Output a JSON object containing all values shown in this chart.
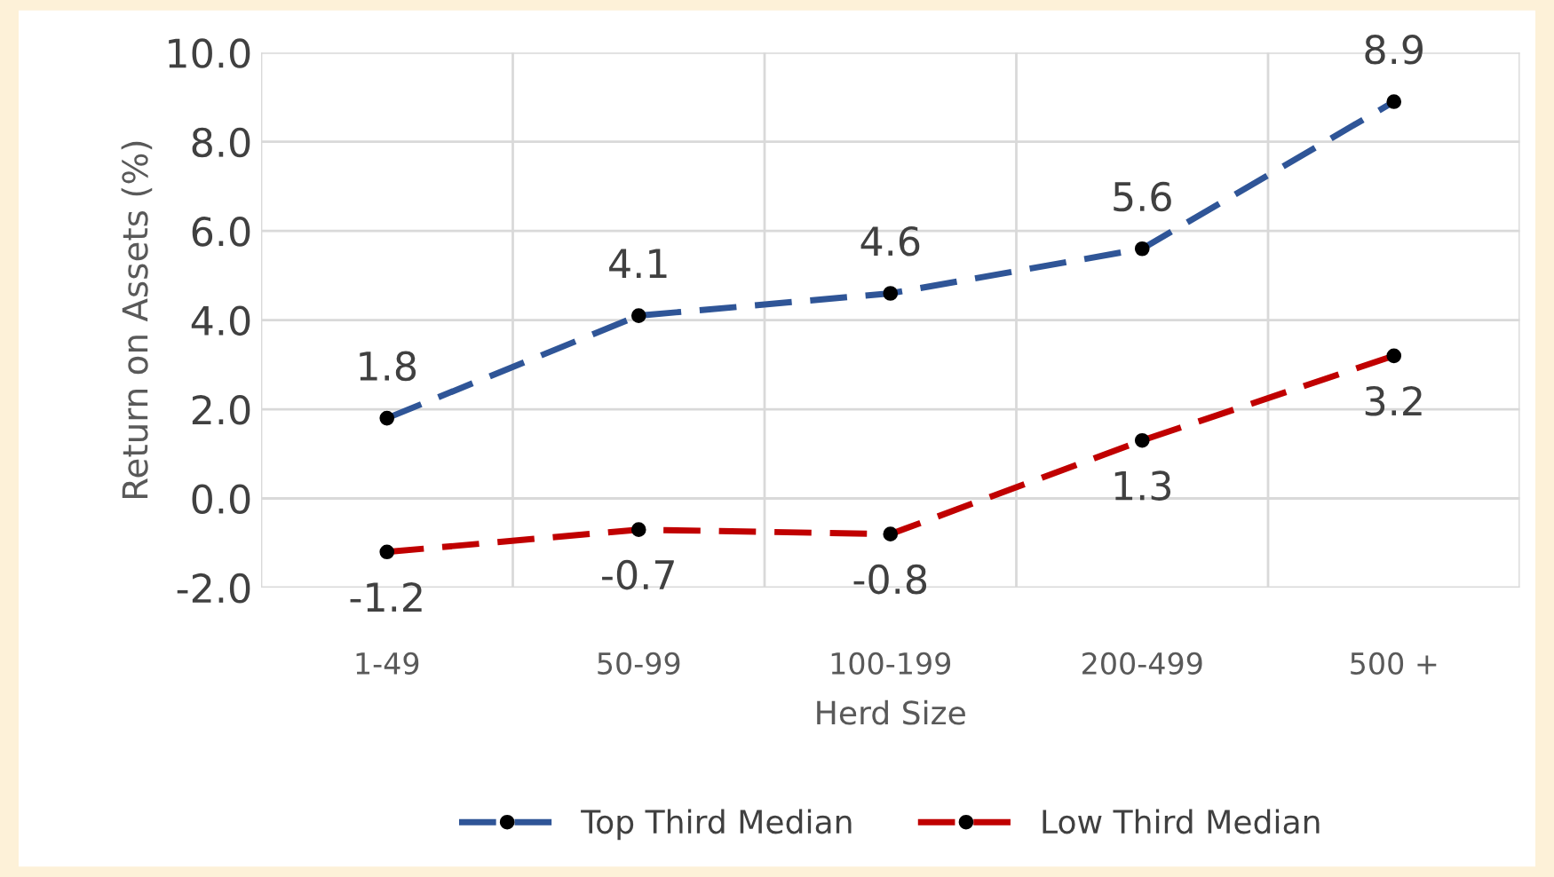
{
  "chart_data": {
    "type": "line",
    "xlabel": "Herd Size",
    "ylabel": "Return on Assets (%)",
    "categories": [
      "1-49",
      "50-99",
      "100-199",
      "200-499",
      "500 +"
    ],
    "series": [
      {
        "name": "Top Third Median",
        "color": "#2f5597",
        "values": [
          1.8,
          4.1,
          4.6,
          5.6,
          8.9
        ]
      },
      {
        "name": "Low Third Median",
        "color": "#c00000",
        "values": [
          -1.2,
          -0.7,
          -0.8,
          1.3,
          3.2
        ]
      }
    ],
    "ylim": [
      -2,
      10
    ],
    "yticks": [
      {
        "value": -2,
        "label": "-2.0"
      },
      {
        "value": 0,
        "label": "0.0"
      },
      {
        "value": 2,
        "label": "2.0"
      },
      {
        "value": 4,
        "label": "4.0"
      },
      {
        "value": 6,
        "label": "6.0"
      },
      {
        "value": 8,
        "label": "8.0"
      },
      {
        "value": 10,
        "label": "10.0"
      }
    ],
    "grid": true,
    "legend": "bottom",
    "marker": "circle",
    "line_style": "dashed",
    "data_labels": true
  }
}
